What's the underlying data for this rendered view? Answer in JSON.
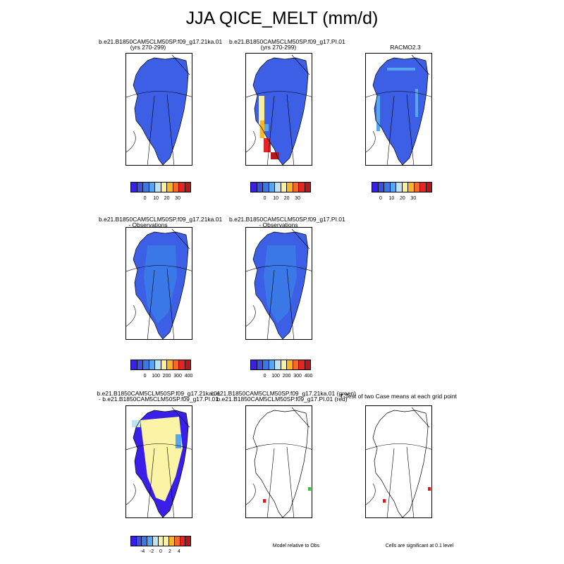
{
  "title": "JJA QICE_MELT (mm/d)",
  "panels": {
    "p1": {
      "title1": "b.e21.B1850CAM5CLM50SP.f09_g17.21ka.01",
      "title2": "(yrs 270-299)"
    },
    "p2": {
      "title1": "b.e21.B1850CAM5CLM50SP.f09_g17.PI.01",
      "title2": "(yrs 270-299)"
    },
    "p3": {
      "title1": "RACMO2.3",
      "title2": ""
    },
    "p4": {
      "title1": "b.e21.B1850CAM5CLM50SP.f09_g17.21ka.01",
      "title2": "- Observations"
    },
    "p5": {
      "title1": "b.e21.B1850CAM5CLM50SP.f09_g17.PI.01",
      "title2": "- Observations"
    },
    "p6": {
      "title1": "b.e21.B1850CAM5CLM50SP.f09_g17.21ka.01",
      "title2": "- b.e21.B1850CAM5CLM50SP.f09_g17.PI.01"
    },
    "p7": {
      "title1": "b.e21.B1850CAM5CLM50SP.f09_g17.21ka.01 (green)",
      "title2": "b.e21.B1850CAM5CLM50SP.f09_g17.PI.01 (red)"
    },
    "p8": {
      "title1": "T-Test of two Case means at each grid point",
      "title2": ""
    }
  },
  "colorbars": {
    "row1": {
      "labels": [
        "0",
        "10",
        "20",
        "30"
      ]
    },
    "row2": {
      "labels": [
        "0",
        "100",
        "200",
        "300",
        "400"
      ]
    },
    "row3": {
      "labels": [
        "-4",
        "-2",
        "0",
        "2",
        "4"
      ]
    }
  },
  "notes": {
    "model_relative": "Model relative to Obs",
    "significant": "Cells are significant at 0.1 level"
  },
  "colors": {
    "seq": [
      "#3a1fe8",
      "#3c4fe0",
      "#3a78e8",
      "#57a7f0",
      "#bfe1f2",
      "#f9ef9d",
      "#f9b628",
      "#f56a2a",
      "#e22525",
      "#b7171b"
    ],
    "diff": [
      "#3a1fe8",
      "#3c4fe0",
      "#3a78e8",
      "#57a7f0",
      "#bfe1f2",
      "#fbf4a6",
      "#fbf4a6",
      "#f9b628",
      "#f56a2a",
      "#e22525",
      "#b7171b"
    ],
    "base_blue": "#3d5fe6",
    "sig_green": "#22cc22",
    "sig_red": "#ee1111"
  }
}
